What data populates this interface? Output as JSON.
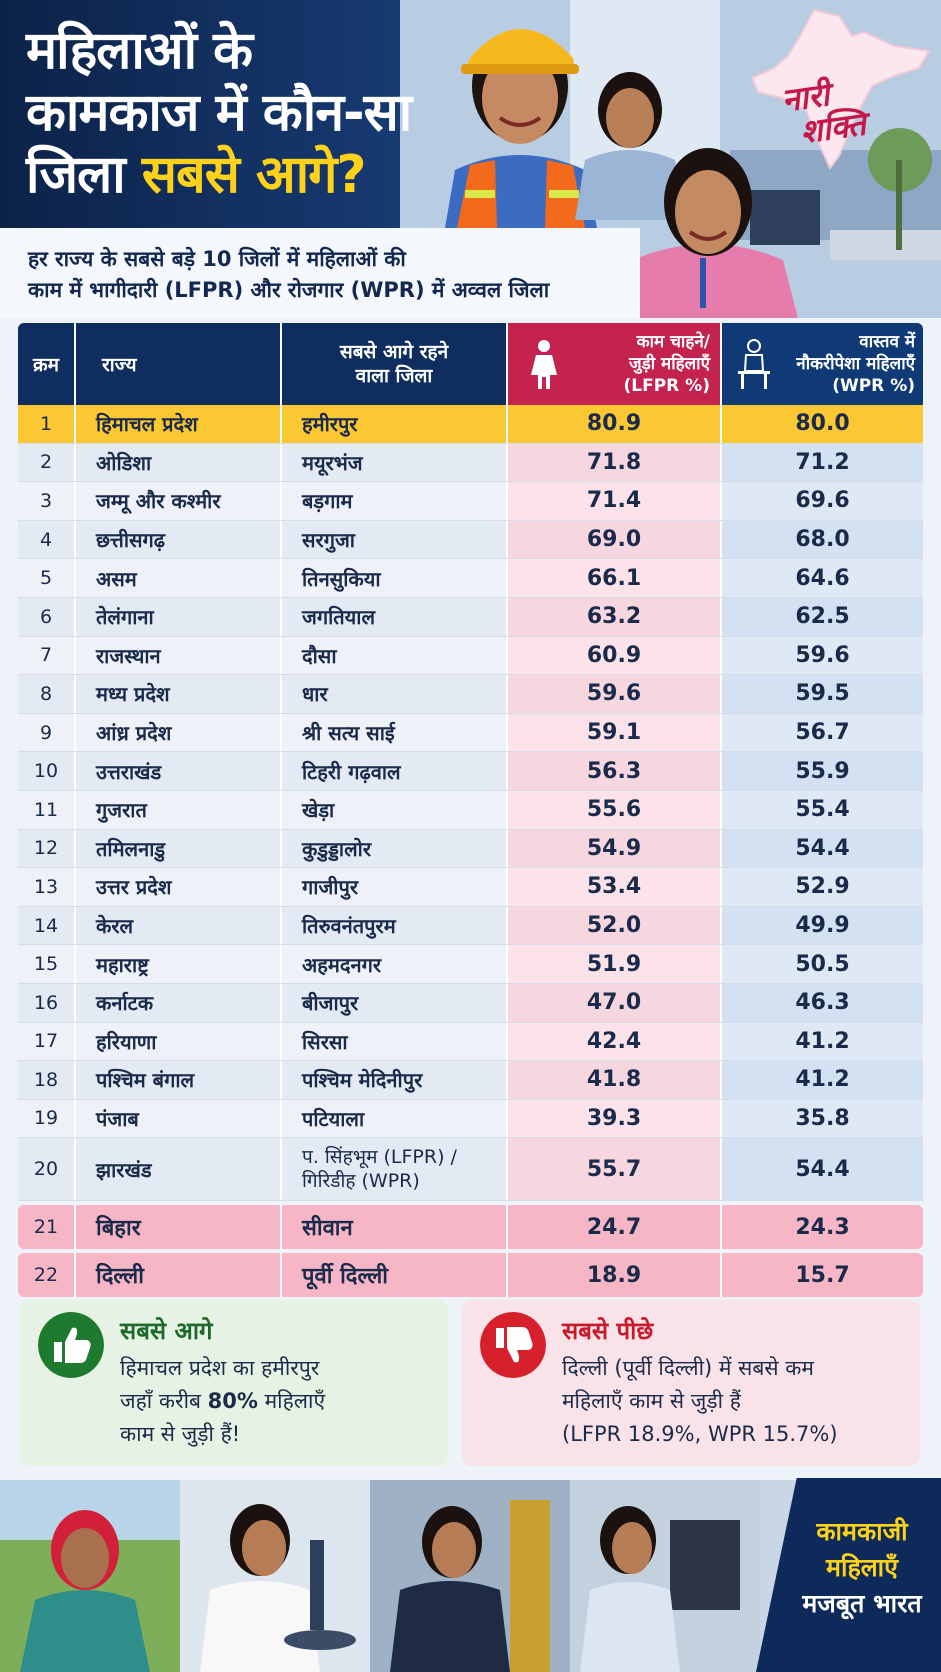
{
  "header": {
    "title_line1": "महिलाओं के",
    "title_line2": "कामकाज में कौन-सा",
    "title_line3_part1": "जिला ",
    "title_line3_highlight": "सबसे आगे?",
    "subtitle_line1": "हर राज्य के सबसे बड़े 10 जिलों में महिलाओं की",
    "subtitle_line2": "काम में भागीदारी (LFPR) और रोजगार (WPR) में अव्वल जिला",
    "brand_line1": "नारी",
    "brand_line2": "शक्ति"
  },
  "table": {
    "headers": {
      "rank": "क्रम",
      "state": "राज्य",
      "district_line1": "सबसे आगे रहने",
      "district_line2": "वाला जिला",
      "lfpr_line1": "काम चाहने/",
      "lfpr_line2": "जुड़ी महिलाएँ",
      "lfpr_line3": "(LFPR %)",
      "wpr_line1": "वास्तव में",
      "wpr_line2": "नौकरीपेशा महिलाएँ",
      "wpr_line3": "(WPR %)"
    },
    "rows": [
      {
        "rank": "1",
        "state": "हिमाचल प्रदेश",
        "district": "हमीरपुर",
        "lfpr": "80.9",
        "wpr": "80.0"
      },
      {
        "rank": "2",
        "state": "ओडिशा",
        "district": "मयूरभंज",
        "lfpr": "71.8",
        "wpr": "71.2"
      },
      {
        "rank": "3",
        "state": "जम्मू और कश्मीर",
        "district": "बड़गाम",
        "lfpr": "71.4",
        "wpr": "69.6"
      },
      {
        "rank": "4",
        "state": "छत्तीसगढ़",
        "district": "सरगुजा",
        "lfpr": "69.0",
        "wpr": "68.0"
      },
      {
        "rank": "5",
        "state": "असम",
        "district": "तिनसुकिया",
        "lfpr": "66.1",
        "wpr": "64.6"
      },
      {
        "rank": "6",
        "state": "तेलंगाना",
        "district": "जगतियाल",
        "lfpr": "63.2",
        "wpr": "62.5"
      },
      {
        "rank": "7",
        "state": "राजस्थान",
        "district": "दौसा",
        "lfpr": "60.9",
        "wpr": "59.6"
      },
      {
        "rank": "8",
        "state": "मध्य प्रदेश",
        "district": "धार",
        "lfpr": "59.6",
        "wpr": "59.5"
      },
      {
        "rank": "9",
        "state": "आंध्र प्रदेश",
        "district": "श्री सत्य साई",
        "lfpr": "59.1",
        "wpr": "56.7"
      },
      {
        "rank": "10",
        "state": "उत्तराखंड",
        "district": "टिहरी गढ़वाल",
        "lfpr": "56.3",
        "wpr": "55.9"
      },
      {
        "rank": "11",
        "state": "गुजरात",
        "district": "खेड़ा",
        "lfpr": "55.6",
        "wpr": "55.4"
      },
      {
        "rank": "12",
        "state": "तमिलनाडु",
        "district": "कुडुड्डालोर",
        "lfpr": "54.9",
        "wpr": "54.4"
      },
      {
        "rank": "13",
        "state": "उत्तर प्रदेश",
        "district": "गाजीपुर",
        "lfpr": "53.4",
        "wpr": "52.9"
      },
      {
        "rank": "14",
        "state": "केरल",
        "district": "तिरुवनंतपुरम",
        "lfpr": "52.0",
        "wpr": "49.9"
      },
      {
        "rank": "15",
        "state": "महाराष्ट्र",
        "district": "अहमदनगर",
        "lfpr": "51.9",
        "wpr": "50.5"
      },
      {
        "rank": "16",
        "state": "कर्नाटक",
        "district": "बीजापुर",
        "lfpr": "47.0",
        "wpr": "46.3"
      },
      {
        "rank": "17",
        "state": "हरियाणा",
        "district": "सिरसा",
        "lfpr": "42.4",
        "wpr": "41.2"
      },
      {
        "rank": "18",
        "state": "पश्चिम बंगाल",
        "district": "पश्चिम मेदिनीपुर",
        "lfpr": "41.8",
        "wpr": "41.2"
      },
      {
        "rank": "19",
        "state": "पंजाब",
        "district": "पटियाला",
        "lfpr": "39.3",
        "wpr": "35.8"
      }
    ],
    "row20": {
      "rank": "20",
      "state": "झारखंड",
      "district_line1": "प. सिंहभूम (LFPR) /",
      "district_line2": "गिरिडीह (WPR)",
      "lfpr": "55.7",
      "wpr": "54.4"
    },
    "bottom_rows": [
      {
        "rank": "21",
        "state": "बिहार",
        "district": "सीवान",
        "lfpr": "24.7",
        "wpr": "24.3"
      },
      {
        "rank": "22",
        "state": "दिल्ली",
        "district": "पूर्वी दिल्ली",
        "lfpr": "18.9",
        "wpr": "15.7"
      }
    ]
  },
  "cards": {
    "best_title": "सबसे आगे",
    "best_line1": "हिमाचल प्रदेश का हमीरपुर",
    "best_line2_pre": "जहाँ करीब ",
    "best_line2_bold": "80%",
    "best_line2_post": " महिलाएँ",
    "best_line3": "काम से जुड़ी हैं!",
    "worst_title": "सबसे पीछे",
    "worst_line1": "दिल्ली (पूर्वी दिल्ली) में सबसे कम",
    "worst_line2": "महिलाएँ काम से जुड़ी हैं",
    "worst_line3": "(LFPR 18.9%, WPR 15.7%)"
  },
  "footer": {
    "badge_line1": "कामकाजी",
    "badge_line2": "महिलाएँ",
    "badge_line3": "मजबूत भारत"
  },
  "colors": {
    "navy": "#0f2d5e",
    "lfpr_header": "#c5234f",
    "highlight_gold": "#fbc834",
    "title_yellow": "#ffd21a",
    "good_green": "#1e7a2e",
    "bad_red": "#d6202c"
  }
}
